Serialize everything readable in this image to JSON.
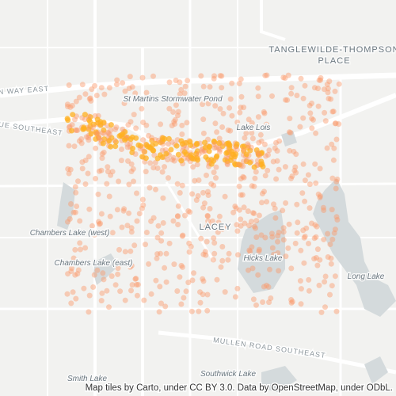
{
  "map": {
    "labels": {
      "tanglewilde_1": "TANGLEWILDE-THOMPSON",
      "tanglewilde_2": "PLACE",
      "way_east": "N WAY EAST",
      "ue_southeast": "UE SOUTHEAST",
      "st_martins": "St Martins Stormwater Pond",
      "lake_lois": "Lake Lois",
      "lacey": "LACEY",
      "chambers_west": "Chambers Lake (west)",
      "chambers_east": "Chambers Lake (east)",
      "hicks_lake": "Hicks Lake",
      "long_lake": "Long Lake",
      "mullen_road": "MULLEN ROAD SOUTHEAST",
      "smith_lake": "Smith Lake",
      "southwick_lake": "Southwick Lake"
    },
    "attribution": "Map tiles by Carto, under CC BY 3.0. Data by OpenStreetMap, under ODbL."
  }
}
